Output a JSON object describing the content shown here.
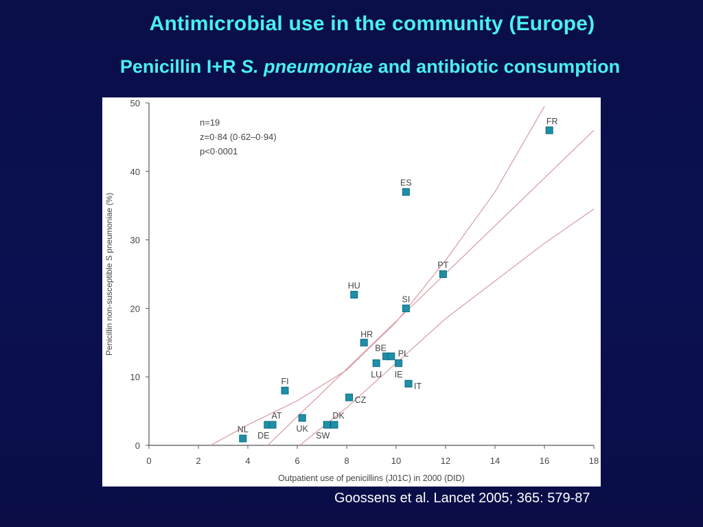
{
  "header": {
    "title": "Antimicrobial use in the community (Europe)",
    "subtitle_pre": "Penicillin I+R ",
    "subtitle_italic": "S. pneumoniae",
    "subtitle_post": " and antibiotic consumption"
  },
  "citation": "Goossens et al. Lancet 2005; 365: 579-87",
  "colors": {
    "background": "#0a0f4a",
    "title": "#49f0ef",
    "marker": "#1e8fa8",
    "regression_line": "#d9a0a8"
  },
  "chart_data": {
    "type": "scatter",
    "xlabel": "Outpatient use of penicillins (J01C) in 2000 (DID)",
    "ylabel": "Penicillin non-susceptible S pneumoniae (%)",
    "xlim": [
      0,
      18
    ],
    "ylim": [
      0,
      50
    ],
    "x_ticks": [
      "0",
      "2",
      "4",
      "6",
      "8",
      "10",
      "12",
      "14",
      "16",
      "18"
    ],
    "y_ticks": [
      "0",
      "10",
      "20",
      "30",
      "40",
      "50"
    ],
    "annotations": [
      "n=19",
      "z=0·84 (0·62–0·94)",
      "p<0·0001"
    ],
    "grid": false,
    "points": [
      {
        "label": "NL",
        "x": 3.8,
        "y": 1
      },
      {
        "label": "DE",
        "x": 4.8,
        "y": 3
      },
      {
        "label": "AT",
        "x": 5.0,
        "y": 3
      },
      {
        "label": "UK",
        "x": 6.2,
        "y": 4
      },
      {
        "label": "SW",
        "x": 7.2,
        "y": 3
      },
      {
        "label": "DK",
        "x": 7.5,
        "y": 3
      },
      {
        "label": "FI",
        "x": 5.5,
        "y": 8
      },
      {
        "label": "CZ",
        "x": 8.1,
        "y": 7
      },
      {
        "label": "LU",
        "x": 9.2,
        "y": 12
      },
      {
        "label": "HR",
        "x": 8.7,
        "y": 15
      },
      {
        "label": "BE",
        "x": 9.6,
        "y": 13
      },
      {
        "label": "PL",
        "x": 9.8,
        "y": 13
      },
      {
        "label": "IE",
        "x": 10.1,
        "y": 12
      },
      {
        "label": "IT",
        "x": 10.5,
        "y": 9
      },
      {
        "label": "HU",
        "x": 8.3,
        "y": 22
      },
      {
        "label": "SI",
        "x": 10.4,
        "y": 20
      },
      {
        "label": "PT",
        "x": 11.9,
        "y": 25
      },
      {
        "label": "ES",
        "x": 10.4,
        "y": 37
      },
      {
        "label": "FR",
        "x": 16.2,
        "y": 46
      }
    ],
    "regression": {
      "fit": [
        [
          4.8,
          0
        ],
        [
          18,
          46
        ]
      ],
      "upper": [
        [
          2.5,
          0
        ],
        [
          4,
          3
        ],
        [
          6,
          6.5
        ],
        [
          8,
          11
        ],
        [
          10,
          18
        ],
        [
          12,
          27
        ],
        [
          14,
          37
        ],
        [
          16,
          49.5
        ]
      ],
      "lower": [
        [
          6.1,
          0
        ],
        [
          8,
          5.5
        ],
        [
          10,
          12
        ],
        [
          12,
          18.5
        ],
        [
          14,
          24
        ],
        [
          16,
          29.5
        ],
        [
          18,
          34.5
        ]
      ]
    }
  }
}
